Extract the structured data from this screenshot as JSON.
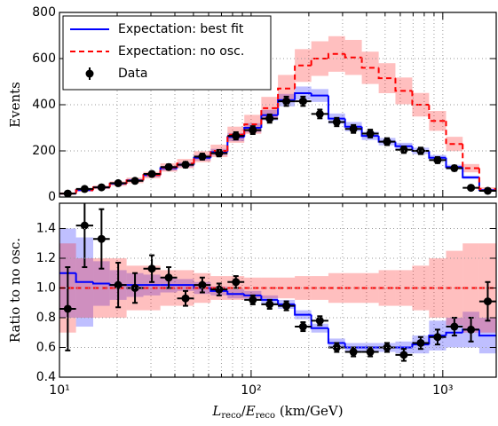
{
  "chart_data": {
    "type": "step",
    "log_x": true,
    "grid": true,
    "legend": "upper left",
    "xlim": [
      10,
      1900
    ],
    "xticks": [
      {
        "value": 10,
        "label": "10¹"
      },
      {
        "value": 100,
        "label": "10²"
      },
      {
        "value": 1000,
        "label": "10³"
      }
    ],
    "xminorticks": [
      20,
      30,
      40,
      50,
      60,
      70,
      80,
      90,
      200,
      300,
      400,
      500,
      600,
      700,
      800,
      900
    ],
    "xlabel": [
      "L",
      "reco",
      "/",
      "E",
      "reco",
      " (km/GeV)"
    ],
    "bins": [
      10,
      12.2,
      15,
      18.3,
      22.4,
      27.4,
      33.6,
      41.1,
      50.3,
      61.5,
      75.3,
      92.1,
      113,
      138,
      169,
      206,
      253,
      309,
      378,
      463,
      566,
      693,
      848,
      1040,
      1270,
      1550,
      1900
    ],
    "panels": [
      {
        "ylabel": "Events",
        "ylim": [
          0,
          800
        ],
        "yticks": [
          0,
          200,
          400,
          600,
          800
        ],
        "series": [
          {
            "name": "Expectation: best fit",
            "color": "#0000ff",
            "style": "solid",
            "values": [
              15,
              30,
              42,
              58,
              72,
              95,
              125,
              140,
              170,
              195,
              260,
              300,
              355,
              420,
              450,
              440,
              340,
              305,
              265,
              240,
              220,
              200,
              170,
              130,
              85,
              30
            ],
            "band": [
              3,
              4,
              5,
              5,
              6,
              8,
              10,
              10,
              12,
              14,
              18,
              20,
              23,
              27,
              29,
              28,
              22,
              20,
              18,
              16,
              15,
              14,
              12,
              10,
              7,
              4
            ]
          },
          {
            "name": "Expectation: no osc.",
            "color": "#ff0000",
            "style": "dashed",
            "values": [
              15,
              30,
              42,
              58,
              72,
              95,
              128,
              145,
              175,
              200,
              270,
              315,
              385,
              470,
              570,
              600,
              620,
              605,
              560,
              515,
              460,
              400,
              330,
              230,
              125,
              35
            ],
            "band": [
              5,
              7,
              8,
              10,
              12,
              14,
              18,
              20,
              24,
              27,
              35,
              41,
              49,
              59,
              71,
              75,
              77,
              76,
              70,
              65,
              58,
              51,
              43,
              31,
              18,
              7
            ]
          }
        ],
        "data": {
          "name": "Data",
          "color": "#000000",
          "values": [
            15,
            35,
            42,
            60,
            70,
            100,
            130,
            140,
            175,
            190,
            265,
            290,
            340,
            415,
            415,
            360,
            325,
            295,
            275,
            240,
            205,
            200,
            160,
            125,
            40,
            27
          ],
          "errors": [
            4,
            6,
            6,
            8,
            8,
            10,
            11,
            12,
            13,
            14,
            16,
            17,
            18,
            20,
            20,
            19,
            18,
            17,
            17,
            15,
            14,
            14,
            13,
            11,
            6,
            5
          ]
        }
      },
      {
        "ylabel": "Ratio to no osc.",
        "ylim": [
          0.4,
          1.57
        ],
        "yticks": [
          0.4,
          0.6,
          0.8,
          {
            "value": 1,
            "label": "1.0"
          },
          1.2,
          1.4
        ],
        "series": [
          {
            "color": "#0000ff",
            "style": "solid",
            "values": [
              1.1,
              1.04,
              1.03,
              1.02,
              1.02,
              1.02,
              1.02,
              1.02,
              1.0,
              0.98,
              0.96,
              0.95,
              0.92,
              0.89,
              0.82,
              0.73,
              0.63,
              0.6,
              0.6,
              0.6,
              0.6,
              0.62,
              0.68,
              0.7,
              0.72,
              0.68
            ],
            "band": [
              0.3,
              0.3,
              0.15,
              0.1,
              0.08,
              0.07,
              0.05,
              0.04,
              0.04,
              0.03,
              0.03,
              0.03,
              0.03,
              0.03,
              0.03,
              0.03,
              0.03,
              0.03,
              0.03,
              0.03,
              0.04,
              0.06,
              0.1,
              0.1,
              0.12,
              0.12
            ]
          },
          {
            "color": "#ff0000",
            "style": "dashed",
            "values": [
              1,
              1,
              1,
              1,
              1,
              1,
              1,
              1,
              1,
              1,
              1,
              1,
              1,
              1,
              1,
              1,
              1,
              1,
              1,
              1,
              1,
              1,
              1,
              1,
              1,
              1
            ],
            "band": [
              0.3,
              0.2,
              0.2,
              0.2,
              0.15,
              0.15,
              0.12,
              0.12,
              0.1,
              0.08,
              0.08,
              0.07,
              0.07,
              0.07,
              0.08,
              0.08,
              0.1,
              0.1,
              0.1,
              0.12,
              0.12,
              0.15,
              0.2,
              0.25,
              0.3,
              0.3
            ]
          }
        ],
        "data": {
          "color": "#000000",
          "values": [
            0.86,
            1.42,
            1.33,
            1.02,
            1.0,
            1.13,
            1.07,
            0.93,
            1.02,
            0.99,
            1.04,
            0.92,
            0.89,
            0.88,
            0.74,
            0.78,
            0.6,
            0.57,
            0.57,
            0.6,
            0.55,
            0.63,
            0.67,
            0.74,
            0.72,
            0.91
          ],
          "errors": [
            0.28,
            0.28,
            0.2,
            0.15,
            0.1,
            0.09,
            0.07,
            0.05,
            0.05,
            0.04,
            0.04,
            0.03,
            0.03,
            0.03,
            0.03,
            0.03,
            0.03,
            0.03,
            0.03,
            0.03,
            0.04,
            0.04,
            0.05,
            0.06,
            0.08,
            0.13
          ]
        }
      }
    ]
  }
}
